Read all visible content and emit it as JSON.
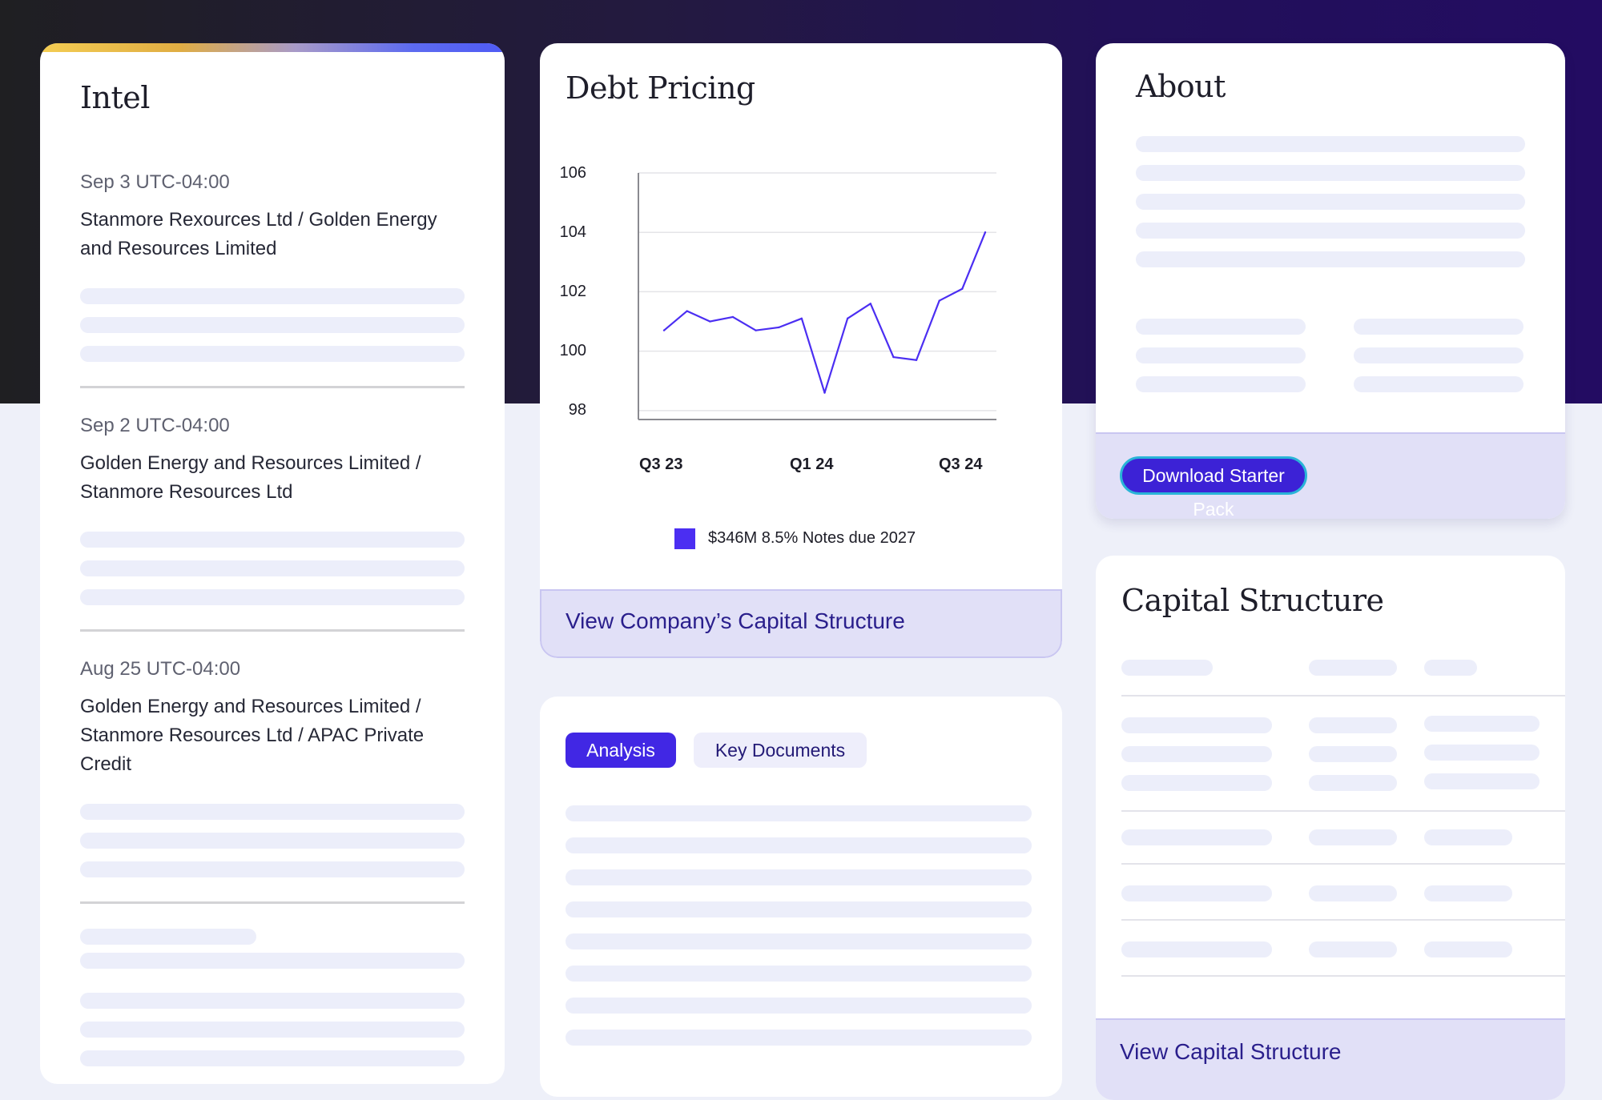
{
  "colors": {
    "accent": "#4127e4",
    "series": "#4b2ef2",
    "strip": "#e1e0f7",
    "link": "#2a1f8c"
  },
  "intel": {
    "title": "Intel",
    "entries": [
      {
        "date": "Sep 3 UTC-04:00",
        "text": "Stanmore Rexources Ltd / Golden Energy and Resources Limited"
      },
      {
        "date": "Sep 2 UTC-04:00",
        "text": "Golden Energy and Resources Limited / Stanmore Resources Ltd"
      },
      {
        "date": "Aug 25 UTC-04:00",
        "text": "Golden Energy and Resources Limited / Stanmore Resources Ltd / APAC Private Credit"
      }
    ]
  },
  "debt_pricing": {
    "title": "Debt Pricing",
    "view_link": "View Company’s Capital Structure",
    "y_ticks": [
      "106",
      "104",
      "102",
      "100",
      "98"
    ],
    "x_ticks": [
      "Q3 23",
      "Q1 24",
      "Q3 24"
    ]
  },
  "chart_data": {
    "type": "line",
    "title": "",
    "xlabel": "",
    "ylabel": "",
    "ylim": [
      97.7,
      106
    ],
    "y_ticks": [
      98,
      100,
      102,
      104,
      106
    ],
    "x_ticks": [
      "Q3 23",
      "Q1 24",
      "Q3 24"
    ],
    "grid": true,
    "legend": "bottom",
    "series": [
      {
        "name": "$346M 8.5% Notes due 2027",
        "color": "#4b2ef2",
        "values": [
          100.7,
          101.35,
          101.0,
          101.15,
          100.7,
          100.8,
          101.1,
          98.6,
          101.1,
          101.6,
          99.8,
          99.7,
          101.7,
          102.1,
          104.0
        ]
      }
    ]
  },
  "tabs": {
    "analysis": "Analysis",
    "key_documents": "Key Documents"
  },
  "about": {
    "title": "About",
    "download_button": "Download Starter Pack"
  },
  "capital_structure": {
    "title": "Capital Structure",
    "view_link": "View Capital Structure"
  }
}
